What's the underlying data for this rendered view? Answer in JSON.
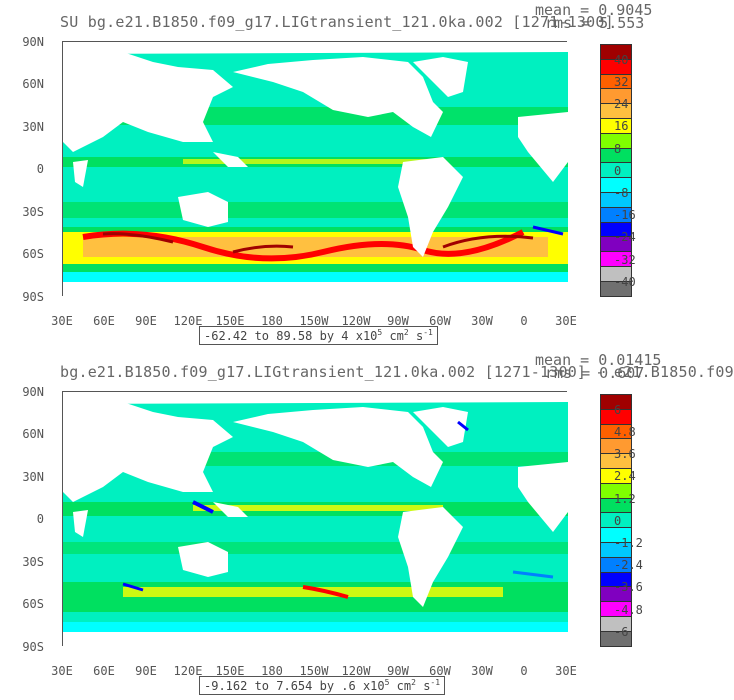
{
  "panels": [
    {
      "title": "SU bg.e21.B1850.f09_g17.LIGtransient_121.0ka.002 [1271-1300]",
      "mean": "mean = 0.9045",
      "rms": "rms = 5.553",
      "range_prefix": "-62.42 to 89.58 by 4 x10",
      "range_exp": "5",
      "range_units": " cm",
      "range_units_exp": "2",
      "range_suffix": " s",
      "range_suffix_exp": "-1",
      "colorbar_labels": [
        "40",
        "32",
        "24",
        "16",
        "8",
        "0",
        "-8",
        "-16",
        "-24",
        "-32",
        "-40"
      ]
    },
    {
      "title": "bg.e21.B1850.f09_g17.LIGtransient_121.0ka.002 [1271-1300] - e21.B1850.f09",
      "mean": "mean = 0.01415",
      "rms": "rms = 0.607",
      "range_prefix": "-9.162 to 7.654 by .6 x10",
      "range_exp": "5",
      "range_units": " cm",
      "range_units_exp": "2",
      "range_suffix": " s",
      "range_suffix_exp": "-1",
      "colorbar_labels": [
        "6",
        "4.8",
        "3.6",
        "2.4",
        "1.2",
        "0",
        "-1.2",
        "-2.4",
        "-3.6",
        "-4.8",
        "-6"
      ]
    }
  ],
  "axes": {
    "lat_labels": [
      "90N",
      "60N",
      "30N",
      "0",
      "30S",
      "60S",
      "90S"
    ],
    "lon_labels": [
      "30E",
      "60E",
      "90E",
      "120E",
      "150E",
      "180",
      "150W",
      "120W",
      "90W",
      "60W",
      "30W",
      "0",
      "30E"
    ]
  },
  "colorbar_colors": [
    "#a00000",
    "#ff0000",
    "#ff6000",
    "#ff9a30",
    "#ffc040",
    "#ffff00",
    "#80ff00",
    "#00e060",
    "#00f0c0",
    "#00ffff",
    "#00c8ff",
    "#0080ff",
    "#0000ff",
    "#8000c0",
    "#ff00ff",
    "#c0c0c0",
    "#707070"
  ],
  "map_colors": {
    "ocean_base": "#00f0c0",
    "land": "#ffffff",
    "green": "#00e060",
    "yellow": "#ffff00",
    "orange": "#ffc040",
    "red": "#ff0000",
    "darkred": "#a00000",
    "blue": "#0080ff",
    "darkblue": "#0000ff",
    "cyan": "#00ffff"
  }
}
